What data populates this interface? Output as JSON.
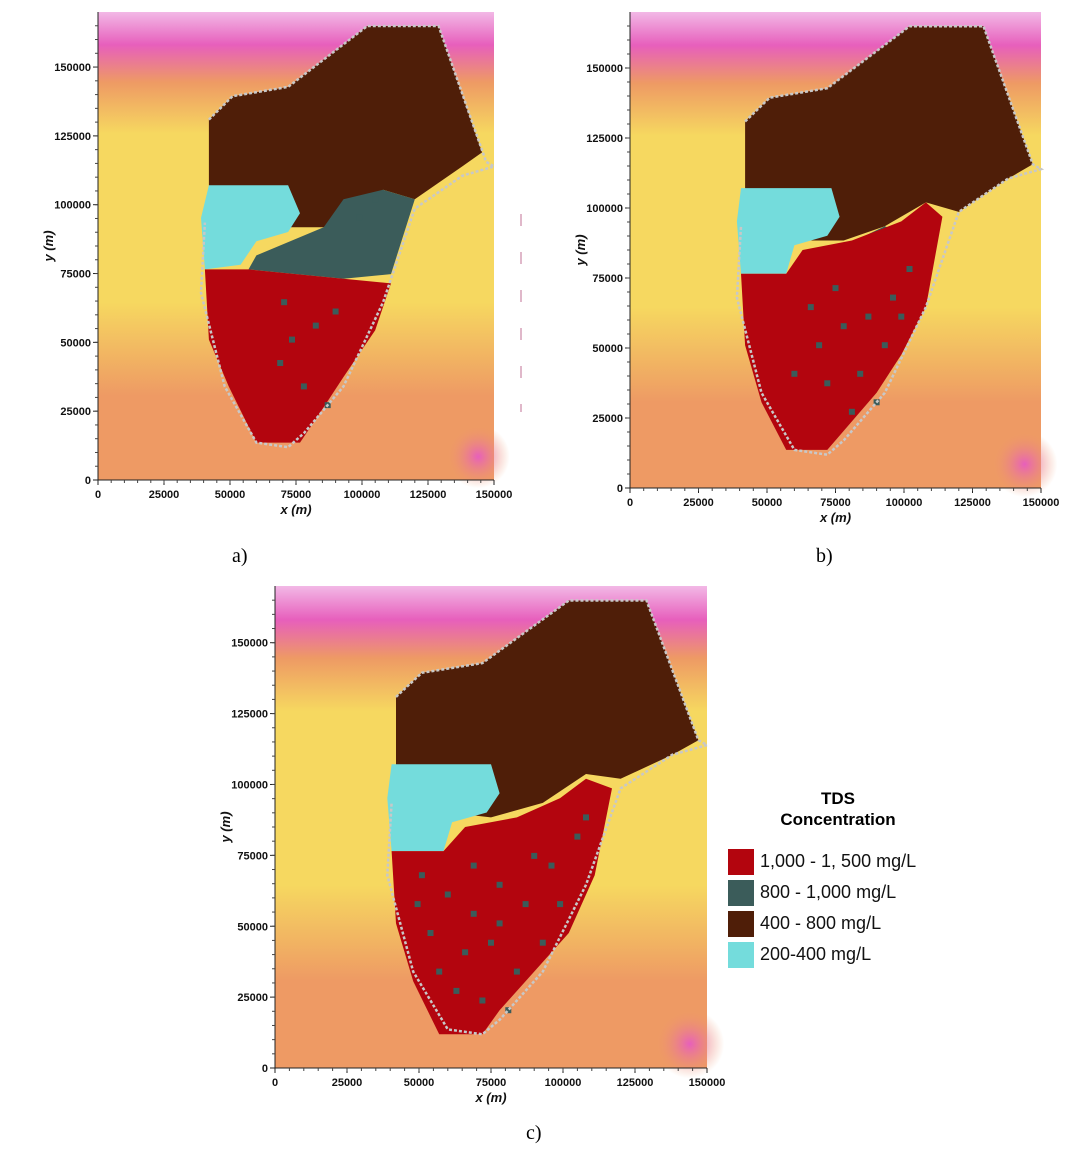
{
  "colors": {
    "background_yellow": "#f6d860",
    "background_orange": "#ee9a64",
    "background_pink": "#e75fbc",
    "background_pale_pink": "#f2b8e6",
    "tds_1000_1500": "#b3050e",
    "tds_800_1000": "#3b5c5a",
    "tds_400_800": "#4f1e08",
    "tds_200_400": "#74dcdc",
    "boundary": "#c8c8c8"
  },
  "axes": {
    "x_label": "x (m)",
    "y_label": "y (m)",
    "x_ticks": [
      "0",
      "25000",
      "50000",
      "75000",
      "100000",
      "125000",
      "150000"
    ],
    "y_ticks": [
      "0",
      "25000",
      "50000",
      "75000",
      "100000",
      "125000",
      "150000"
    ],
    "xlim": [
      0,
      150000
    ],
    "ylim": [
      0,
      170000
    ]
  },
  "panels": [
    {
      "id": "a",
      "caption": "a)"
    },
    {
      "id": "b",
      "caption": "b)"
    },
    {
      "id": "c",
      "caption": "c)"
    }
  ],
  "legend": {
    "title_line1": "TDS",
    "title_line2": "Concentration",
    "items": [
      {
        "label": "1,000 - 1, 500 mg/L",
        "color": "#b3050e"
      },
      {
        "label": "800 - 1,000 mg/L",
        "color": "#3b5c5a"
      },
      {
        "label": "400 - 800 mg/L",
        "color": "#4f1e08"
      },
      {
        "label": "200-400 mg/L",
        "color": "#74dcdc"
      }
    ]
  }
}
